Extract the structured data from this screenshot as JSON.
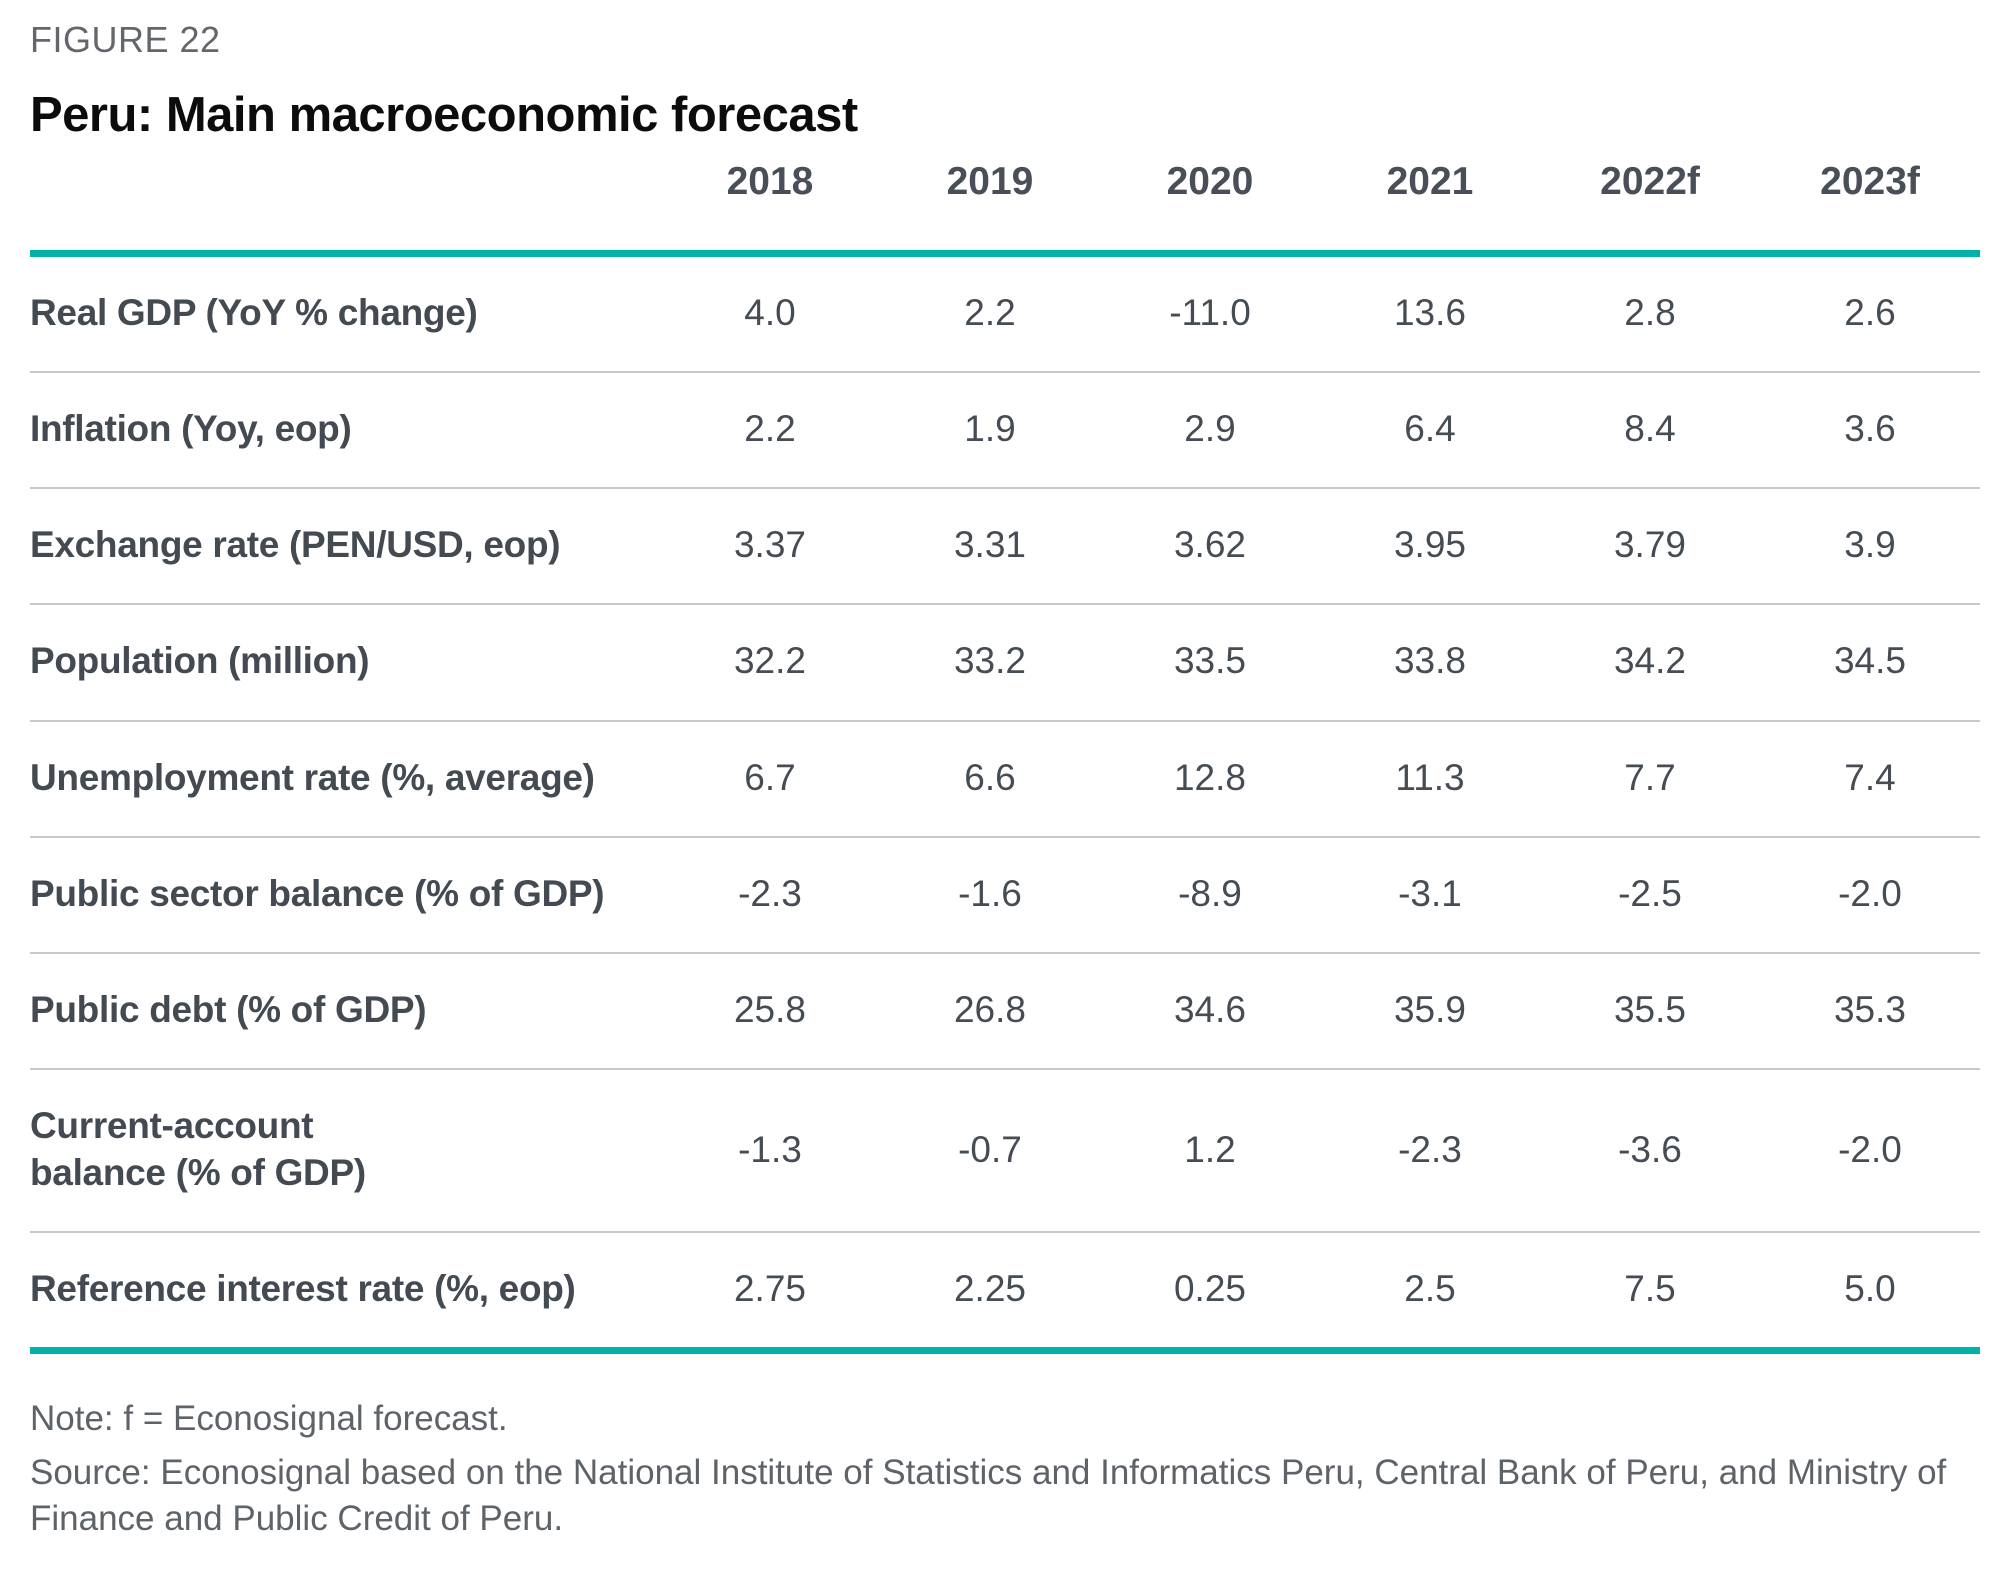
{
  "figure_label": "FIGURE 22",
  "title": "Peru: Main macroeconomic forecast",
  "colors": {
    "accent_teal": "#00b2a9",
    "row_divider": "#c6c9cb",
    "text_dark": "#454c54",
    "text_gray": "#63676d",
    "title_black": "#0c0c0c"
  },
  "table": {
    "columns": [
      "2018",
      "2019",
      "2020",
      "2021",
      "2022f",
      "2023f"
    ],
    "rows": [
      {
        "label": "Real GDP (YoY % change)",
        "values": [
          "4.0",
          "2.2",
          "-11.0",
          "13.6",
          "2.8",
          "2.6"
        ]
      },
      {
        "label": "Inflation (Yoy, eop)",
        "values": [
          "2.2",
          "1.9",
          "2.9",
          "6.4",
          "8.4",
          "3.6"
        ]
      },
      {
        "label": "Exchange rate (PEN/USD, eop)",
        "values": [
          "3.37",
          "3.31",
          "3.62",
          "3.95",
          "3.79",
          "3.9"
        ]
      },
      {
        "label": "Population (million)",
        "values": [
          "32.2",
          "33.2",
          "33.5",
          "33.8",
          "34.2",
          "34.5"
        ]
      },
      {
        "label": "Unemployment rate (%, average)",
        "values": [
          "6.7",
          "6.6",
          "12.8",
          "11.3",
          "7.7",
          "7.4"
        ]
      },
      {
        "label": "Public sector balance (% of GDP)",
        "values": [
          "-2.3",
          "-1.6",
          "-8.9",
          "-3.1",
          "-2.5",
          "-2.0"
        ]
      },
      {
        "label": "Public debt (% of GDP)",
        "values": [
          "25.8",
          "26.8",
          "34.6",
          "35.9",
          "35.5",
          "35.3"
        ]
      },
      {
        "label": "Current-account\nbalance (% of GDP)",
        "values": [
          "-1.3",
          "-0.7",
          "1.2",
          "-2.3",
          "-3.6",
          "-2.0"
        ]
      },
      {
        "label": "Reference interest rate (%, eop)",
        "values": [
          "2.75",
          "2.25",
          "0.25",
          "2.5",
          "7.5",
          "5.0"
        ]
      }
    ]
  },
  "notes": {
    "note": "Note: f = Econosignal forecast.",
    "source": "Source: Econosignal based on the National Institute of Statistics and Informatics Peru, Central Bank of Peru, and Ministry of Finance and Public Credit of Peru."
  },
  "chart_data": {
    "type": "table",
    "title": "Peru: Main macroeconomic forecast",
    "figure_number": "FIGURE 22",
    "columns": [
      "2018",
      "2019",
      "2020",
      "2021",
      "2022f",
      "2023f"
    ],
    "series": [
      {
        "name": "Real GDP (YoY % change)",
        "values": [
          4.0,
          2.2,
          -11.0,
          13.6,
          2.8,
          2.6
        ]
      },
      {
        "name": "Inflation (Yoy, eop)",
        "values": [
          2.2,
          1.9,
          2.9,
          6.4,
          8.4,
          3.6
        ]
      },
      {
        "name": "Exchange rate (PEN/USD, eop)",
        "values": [
          3.37,
          3.31,
          3.62,
          3.95,
          3.79,
          3.9
        ]
      },
      {
        "name": "Population (million)",
        "values": [
          32.2,
          33.2,
          33.5,
          33.8,
          34.2,
          34.5
        ]
      },
      {
        "name": "Unemployment rate (%, average)",
        "values": [
          6.7,
          6.6,
          12.8,
          11.3,
          7.7,
          7.4
        ]
      },
      {
        "name": "Public sector balance (% of GDP)",
        "values": [
          -2.3,
          -1.6,
          -8.9,
          -3.1,
          -2.5,
          -2.0
        ]
      },
      {
        "name": "Public debt (% of GDP)",
        "values": [
          25.8,
          26.8,
          34.6,
          35.9,
          35.5,
          35.3
        ]
      },
      {
        "name": "Current-account balance (% of GDP)",
        "values": [
          -1.3,
          -0.7,
          1.2,
          -2.3,
          -3.6,
          -2.0
        ]
      },
      {
        "name": "Reference interest rate (%, eop)",
        "values": [
          2.75,
          2.25,
          0.25,
          2.5,
          7.5,
          5.0
        ]
      }
    ],
    "note": "f = Econosignal forecast"
  }
}
